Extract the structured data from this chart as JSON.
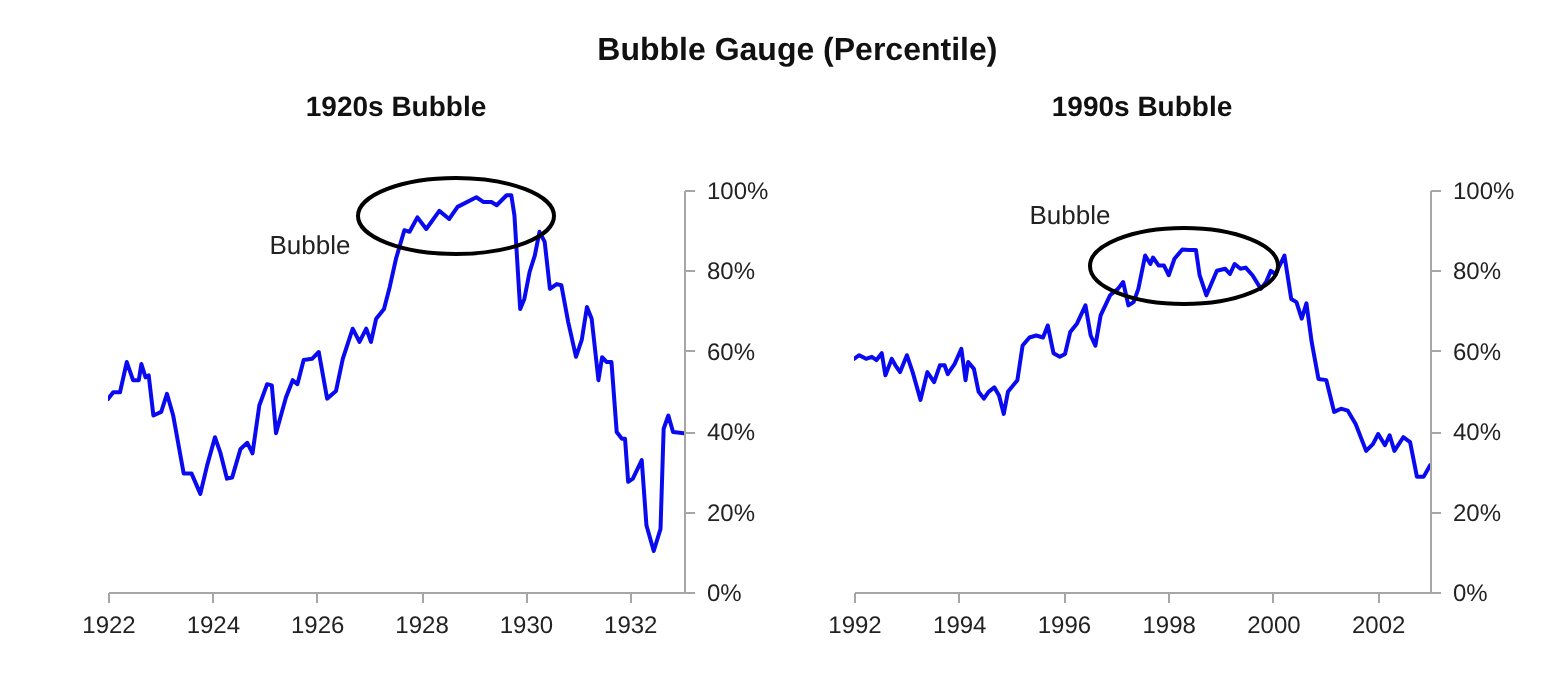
{
  "chart_data": [
    {
      "type": "line",
      "title": "Bubble Gauge (Percentile)",
      "subtitle": "1920s Bubble",
      "xlim": [
        1922,
        1933.04
      ],
      "xticks": [
        1922,
        1924,
        1926,
        1928,
        1930,
        1932
      ],
      "ylim": [
        0,
        100
      ],
      "yticks": [
        {
          "value": 0,
          "label": "0%"
        },
        {
          "value": 20,
          "label": "20%"
        },
        {
          "value": 40,
          "label": "40%"
        },
        {
          "value": 60,
          "label": "60%"
        },
        {
          "value": 80,
          "label": "80%"
        },
        {
          "value": 100,
          "label": "100%"
        }
      ],
      "grid": false,
      "annotations": [
        "Bubble"
      ],
      "series": [
        {
          "color": "#0a0af0",
          "x": [
            1922.0,
            1922.1,
            1922.23,
            1922.36,
            1922.48,
            1922.59,
            1922.64,
            1922.72,
            1922.78,
            1922.87,
            1923.02,
            1923.13,
            1923.25,
            1923.45,
            1923.6,
            1923.77,
            1923.9,
            1924.05,
            1924.15,
            1924.28,
            1924.38,
            1924.54,
            1924.67,
            1924.77,
            1924.9,
            1925.05,
            1925.14,
            1925.22,
            1925.41,
            1925.54,
            1925.63,
            1925.75,
            1925.91,
            1926.04,
            1926.2,
            1926.37,
            1926.5,
            1926.69,
            1926.82,
            1926.95,
            1927.04,
            1927.14,
            1927.29,
            1927.4,
            1927.52,
            1927.68,
            1927.78,
            1927.93,
            1928.1,
            1928.35,
            1928.54,
            1928.7,
            1929.06,
            1929.2,
            1929.35,
            1929.45,
            1929.64,
            1929.73,
            1929.79,
            1929.9,
            1929.98,
            1930.08,
            1930.18,
            1930.27,
            1930.37,
            1930.47,
            1930.6,
            1930.69,
            1930.82,
            1930.97,
            1931.08,
            1931.18,
            1931.27,
            1931.4,
            1931.47,
            1931.56,
            1931.65,
            1931.75,
            1931.85,
            1931.91,
            1931.97,
            1932.06,
            1932.23,
            1932.32,
            1932.46,
            1932.59,
            1932.65,
            1932.74,
            1932.83,
            1933.04
          ],
          "values": [
            48,
            49.7,
            49.7,
            57.2,
            52.7,
            52.7,
            56.7,
            53.4,
            53.9,
            43.9,
            44.8,
            49.3,
            43.9,
            29.5,
            29.5,
            24.4,
            31.5,
            38.5,
            34.8,
            28.2,
            28.5,
            35.6,
            37.1,
            34.5,
            46.4,
            51.7,
            51.4,
            39.5,
            48.4,
            52.7,
            51.7,
            57.7,
            58,
            59.7,
            48.1,
            50,
            58,
            65.5,
            62.2,
            65.5,
            62.2,
            68,
            70.4,
            75.9,
            82.9,
            90,
            89.6,
            93.2,
            90.3,
            94.8,
            92.8,
            95.8,
            98.2,
            97,
            97,
            96.2,
            98.7,
            98.7,
            93.7,
            70.4,
            72.9,
            79.6,
            83.7,
            89.6,
            87.1,
            75.4,
            76.6,
            76.3,
            67.2,
            58.5,
            62.7,
            70.9,
            68,
            52.7,
            58.4,
            57.2,
            57.2,
            39.8,
            38.1,
            38.1,
            27.4,
            28.2,
            32.8,
            16.6,
            10.2,
            15.7,
            40.6,
            43.9,
            39.8,
            39.5
          ]
        }
      ]
    },
    {
      "type": "line",
      "title": "1990s Bubble",
      "xlim": [
        1992,
        2003
      ],
      "xticks": [
        1992,
        1994,
        1996,
        1998,
        2000,
        2002
      ],
      "ylim": [
        0,
        100
      ],
      "yticks": [
        {
          "value": 0,
          "label": "0%"
        },
        {
          "value": 20,
          "label": "20%"
        },
        {
          "value": 40,
          "label": "40%"
        },
        {
          "value": 60,
          "label": "60%"
        },
        {
          "value": 80,
          "label": "80%"
        },
        {
          "value": 100,
          "label": "100%"
        }
      ],
      "grid": false,
      "annotations": [
        "Bubble"
      ],
      "series": [
        {
          "color": "#0a0af0",
          "x": [
            1992.0,
            1992.1,
            1992.23,
            1992.34,
            1992.43,
            1992.53,
            1992.6,
            1992.72,
            1992.79,
            1992.88,
            1993.01,
            1993.12,
            1993.27,
            1993.4,
            1993.53,
            1993.64,
            1993.73,
            1993.79,
            1993.92,
            1994.05,
            1994.13,
            1994.18,
            1994.29,
            1994.38,
            1994.48,
            1994.57,
            1994.68,
            1994.77,
            1994.86,
            1994.94,
            1995.12,
            1995.22,
            1995.35,
            1995.48,
            1995.61,
            1995.7,
            1995.81,
            1995.93,
            1996.03,
            1996.13,
            1996.26,
            1996.42,
            1996.52,
            1996.61,
            1996.71,
            1996.89,
            1997.04,
            1997.14,
            1997.24,
            1997.34,
            1997.43,
            1997.56,
            1997.66,
            1997.71,
            1997.82,
            1997.92,
            1998.01,
            1998.12,
            1998.27,
            1998.4,
            1998.53,
            1998.6,
            1998.73,
            1998.93,
            1999.09,
            1999.18,
            1999.27,
            1999.38,
            1999.48,
            1999.61,
            1999.77,
            1999.87,
            1999.96,
            2000.05,
            2000.22,
            2000.35,
            2000.45,
            2000.55,
            2000.64,
            2000.74,
            2000.87,
            2001.02,
            2001.17,
            2001.3,
            2001.43,
            2001.58,
            2001.78,
            2001.91,
            2002.01,
            2002.14,
            2002.23,
            2002.32,
            2002.49,
            2002.62,
            2002.75,
            2002.88,
            2003.0
          ],
          "values": [
            58,
            58.9,
            58,
            58.5,
            57.7,
            59.4,
            53.9,
            58,
            56.4,
            54.7,
            58.9,
            54.7,
            47.8,
            54.7,
            52.2,
            56.4,
            56.4,
            54.2,
            56.7,
            60.5,
            52.7,
            57.2,
            55.5,
            49.8,
            48.1,
            49.8,
            50.9,
            48.9,
            44.3,
            49.8,
            52.7,
            61.3,
            63.3,
            63.8,
            63.3,
            66.3,
            59.4,
            58.5,
            59.2,
            64.7,
            66.8,
            71.3,
            63.8,
            61.3,
            68.8,
            73.8,
            75.4,
            77.1,
            71.3,
            72.1,
            75.4,
            83.7,
            81.6,
            83.2,
            81.2,
            81.2,
            78.8,
            82.9,
            85.2,
            85.1,
            85.1,
            78.8,
            73.8,
            79.9,
            80.4,
            79.1,
            81.6,
            80.4,
            80.7,
            78.8,
            75.4,
            77.1,
            79.9,
            79.1,
            83.7,
            72.9,
            72.1,
            68,
            71.8,
            62.2,
            53,
            52.7,
            44.8,
            45.6,
            45.1,
            41.8,
            35.1,
            36.8,
            39.3,
            36.5,
            39,
            35.1,
            38.5,
            37.3,
            28.7,
            28.7,
            31.5
          ]
        }
      ]
    }
  ]
}
